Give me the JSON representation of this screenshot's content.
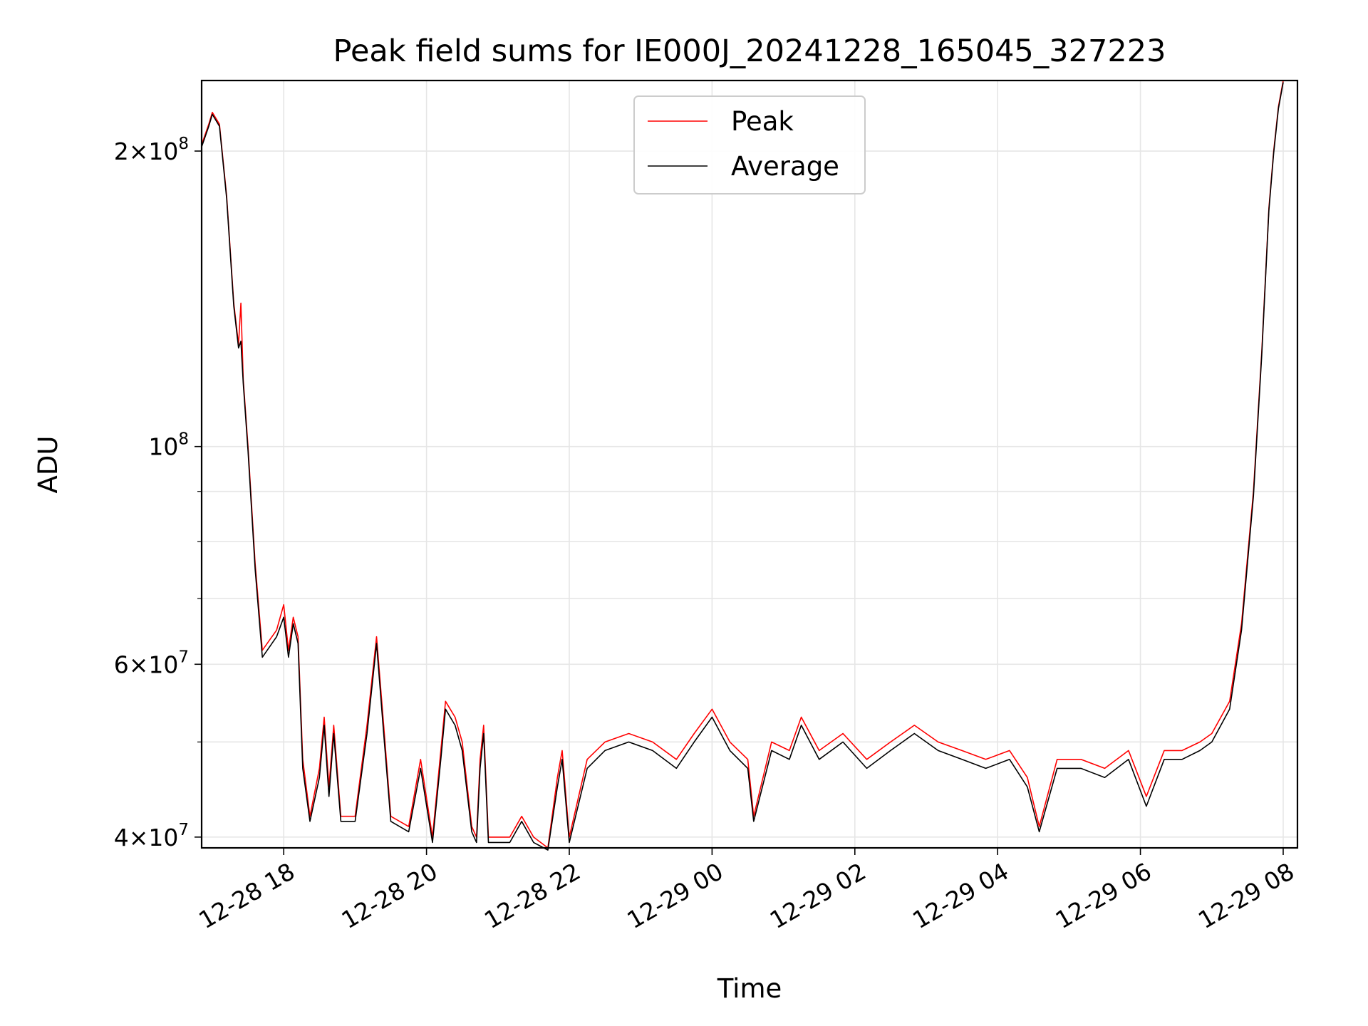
{
  "chart_data": {
    "type": "line",
    "title": "Peak field sums for IE000J_20241228_165045_327223",
    "xlabel": "Time",
    "ylabel": "ADU",
    "x_tick_labels": [
      "12-28 18",
      "12-28 20",
      "12-28 22",
      "12-29 00",
      "12-29 02",
      "12-29 04",
      "12-29 06",
      "12-29 08"
    ],
    "x_tick_times": [
      "2024-12-28T18:00",
      "2024-12-28T20:00",
      "2024-12-28T22:00",
      "2024-12-29T00:00",
      "2024-12-29T02:00",
      "2024-12-29T04:00",
      "2024-12-29T06:00",
      "2024-12-29T08:00"
    ],
    "xlim": [
      "2024-12-28T16:51",
      "2024-12-29T08:12"
    ],
    "y_scale": "log",
    "ylim": [
      39000000,
      236000000
    ],
    "y_tick_labels": [
      {
        "value": 200000000,
        "mantissa": "2",
        "exponent": "8"
      },
      {
        "value": 100000000,
        "mantissa": "",
        "exponent": "8"
      },
      {
        "value": 60000000,
        "mantissa": "6",
        "exponent": "7"
      },
      {
        "value": 40000000,
        "mantissa": "4",
        "exponent": "7"
      }
    ],
    "y_minor_ticks": [
      50000000,
      70000000,
      80000000,
      90000000
    ],
    "grid": true,
    "legend_position": "top-center",
    "series": [
      {
        "name": "Peak",
        "color": "#ff0000",
        "points": [
          [
            "2024-12-28T16:51",
            203000000
          ],
          [
            "2024-12-28T16:57",
            213000000
          ],
          [
            "2024-12-28T17:00",
            219000000
          ],
          [
            "2024-12-28T17:06",
            213000000
          ],
          [
            "2024-12-28T17:12",
            180000000
          ],
          [
            "2024-12-28T17:18",
            140000000
          ],
          [
            "2024-12-28T17:22",
            127000000
          ],
          [
            "2024-12-28T17:24",
            140000000
          ],
          [
            "2024-12-28T17:26",
            117000000
          ],
          [
            "2024-12-28T17:30",
            100000000
          ],
          [
            "2024-12-28T17:36",
            76000000
          ],
          [
            "2024-12-28T17:42",
            62000000
          ],
          [
            "2024-12-28T17:54",
            65000000
          ],
          [
            "2024-12-28T18:00",
            69000000
          ],
          [
            "2024-12-28T18:04",
            62000000
          ],
          [
            "2024-12-28T18:08",
            67000000
          ],
          [
            "2024-12-28T18:12",
            64000000
          ],
          [
            "2024-12-28T18:16",
            48000000
          ],
          [
            "2024-12-28T18:22",
            42000000
          ],
          [
            "2024-12-28T18:30",
            47000000
          ],
          [
            "2024-12-28T18:34",
            53000000
          ],
          [
            "2024-12-28T18:38",
            45000000
          ],
          [
            "2024-12-28T18:42",
            52000000
          ],
          [
            "2024-12-28T18:48",
            42000000
          ],
          [
            "2024-12-28T19:00",
            42000000
          ],
          [
            "2024-12-28T19:10",
            52000000
          ],
          [
            "2024-12-28T19:18",
            64000000
          ],
          [
            "2024-12-28T19:24",
            52000000
          ],
          [
            "2024-12-28T19:30",
            42000000
          ],
          [
            "2024-12-28T19:45",
            41000000
          ],
          [
            "2024-12-28T19:55",
            48000000
          ],
          [
            "2024-12-28T20:05",
            40000000
          ],
          [
            "2024-12-28T20:12",
            49000000
          ],
          [
            "2024-12-28T20:16",
            55000000
          ],
          [
            "2024-12-28T20:24",
            53000000
          ],
          [
            "2024-12-28T20:30",
            50000000
          ],
          [
            "2024-12-28T20:38",
            41000000
          ],
          [
            "2024-12-28T20:42",
            40000000
          ],
          [
            "2024-12-28T20:45",
            48000000
          ],
          [
            "2024-12-28T20:48",
            52000000
          ],
          [
            "2024-12-28T20:52",
            40000000
          ],
          [
            "2024-12-28T21:10",
            40000000
          ],
          [
            "2024-12-28T21:20",
            42000000
          ],
          [
            "2024-12-28T21:30",
            40000000
          ],
          [
            "2024-12-28T21:42",
            39000000
          ],
          [
            "2024-12-28T21:50",
            46000000
          ],
          [
            "2024-12-28T21:54",
            49000000
          ],
          [
            "2024-12-28T22:00",
            40000000
          ],
          [
            "2024-12-28T22:15",
            48000000
          ],
          [
            "2024-12-28T22:30",
            50000000
          ],
          [
            "2024-12-28T22:50",
            51000000
          ],
          [
            "2024-12-28T23:10",
            50000000
          ],
          [
            "2024-12-28T23:30",
            48000000
          ],
          [
            "2024-12-28T23:45",
            51000000
          ],
          [
            "2024-12-29T00:00",
            54000000
          ],
          [
            "2024-12-29T00:15",
            50000000
          ],
          [
            "2024-12-29T00:30",
            48000000
          ],
          [
            "2024-12-29T00:35",
            42000000
          ],
          [
            "2024-12-29T00:50",
            50000000
          ],
          [
            "2024-12-29T01:05",
            49000000
          ],
          [
            "2024-12-29T01:15",
            53000000
          ],
          [
            "2024-12-29T01:30",
            49000000
          ],
          [
            "2024-12-29T01:50",
            51000000
          ],
          [
            "2024-12-29T02:10",
            48000000
          ],
          [
            "2024-12-29T02:30",
            50000000
          ],
          [
            "2024-12-29T02:50",
            52000000
          ],
          [
            "2024-12-29T03:10",
            50000000
          ],
          [
            "2024-12-29T03:30",
            49000000
          ],
          [
            "2024-12-29T03:50",
            48000000
          ],
          [
            "2024-12-29T04:10",
            49000000
          ],
          [
            "2024-12-29T04:25",
            46000000
          ],
          [
            "2024-12-29T04:35",
            41000000
          ],
          [
            "2024-12-29T04:50",
            48000000
          ],
          [
            "2024-12-29T05:10",
            48000000
          ],
          [
            "2024-12-29T05:30",
            47000000
          ],
          [
            "2024-12-29T05:50",
            49000000
          ],
          [
            "2024-12-29T06:05",
            44000000
          ],
          [
            "2024-12-29T06:20",
            49000000
          ],
          [
            "2024-12-29T06:35",
            49000000
          ],
          [
            "2024-12-29T06:50",
            50000000
          ],
          [
            "2024-12-29T07:00",
            51000000
          ],
          [
            "2024-12-29T07:15",
            55000000
          ],
          [
            "2024-12-29T07:25",
            66000000
          ],
          [
            "2024-12-29T07:35",
            90000000
          ],
          [
            "2024-12-29T07:42",
            125000000
          ],
          [
            "2024-12-29T07:48",
            175000000
          ],
          [
            "2024-12-29T07:52",
            200000000
          ],
          [
            "2024-12-29T07:56",
            222000000
          ],
          [
            "2024-12-29T08:00",
            236000000
          ]
        ]
      },
      {
        "name": "Average",
        "color": "#000000",
        "points": [
          [
            "2024-12-28T16:51",
            202000000
          ],
          [
            "2024-12-28T16:57",
            212000000
          ],
          [
            "2024-12-28T17:00",
            218000000
          ],
          [
            "2024-12-28T17:06",
            212000000
          ],
          [
            "2024-12-28T17:12",
            179000000
          ],
          [
            "2024-12-28T17:18",
            139000000
          ],
          [
            "2024-12-28T17:22",
            126000000
          ],
          [
            "2024-12-28T17:24",
            128000000
          ],
          [
            "2024-12-28T17:26",
            116000000
          ],
          [
            "2024-12-28T17:30",
            99000000
          ],
          [
            "2024-12-28T17:36",
            75000000
          ],
          [
            "2024-12-28T17:42",
            61000000
          ],
          [
            "2024-12-28T17:54",
            64000000
          ],
          [
            "2024-12-28T18:00",
            67000000
          ],
          [
            "2024-12-28T18:04",
            61000000
          ],
          [
            "2024-12-28T18:08",
            66000000
          ],
          [
            "2024-12-28T18:12",
            63000000
          ],
          [
            "2024-12-28T18:16",
            47000000
          ],
          [
            "2024-12-28T18:22",
            41500000
          ],
          [
            "2024-12-28T18:30",
            46000000
          ],
          [
            "2024-12-28T18:34",
            52000000
          ],
          [
            "2024-12-28T18:38",
            44000000
          ],
          [
            "2024-12-28T18:42",
            51000000
          ],
          [
            "2024-12-28T18:48",
            41500000
          ],
          [
            "2024-12-28T19:00",
            41500000
          ],
          [
            "2024-12-28T19:10",
            51000000
          ],
          [
            "2024-12-28T19:18",
            63000000
          ],
          [
            "2024-12-28T19:24",
            51000000
          ],
          [
            "2024-12-28T19:30",
            41500000
          ],
          [
            "2024-12-28T19:45",
            40500000
          ],
          [
            "2024-12-28T19:55",
            47000000
          ],
          [
            "2024-12-28T20:05",
            39500000
          ],
          [
            "2024-12-28T20:12",
            48000000
          ],
          [
            "2024-12-28T20:16",
            54000000
          ],
          [
            "2024-12-28T20:24",
            52000000
          ],
          [
            "2024-12-28T20:30",
            49000000
          ],
          [
            "2024-12-28T20:38",
            40500000
          ],
          [
            "2024-12-28T20:42",
            39500000
          ],
          [
            "2024-12-28T20:45",
            47000000
          ],
          [
            "2024-12-28T20:48",
            51000000
          ],
          [
            "2024-12-28T20:52",
            39500000
          ],
          [
            "2024-12-28T21:10",
            39500000
          ],
          [
            "2024-12-28T21:20",
            41500000
          ],
          [
            "2024-12-28T21:30",
            39500000
          ],
          [
            "2024-12-28T21:42",
            38800000
          ],
          [
            "2024-12-28T21:50",
            45000000
          ],
          [
            "2024-12-28T21:54",
            48000000
          ],
          [
            "2024-12-28T22:00",
            39500000
          ],
          [
            "2024-12-28T22:15",
            47000000
          ],
          [
            "2024-12-28T22:30",
            49000000
          ],
          [
            "2024-12-28T22:50",
            50000000
          ],
          [
            "2024-12-28T23:10",
            49000000
          ],
          [
            "2024-12-28T23:30",
            47000000
          ],
          [
            "2024-12-28T23:45",
            50000000
          ],
          [
            "2024-12-29T00:00",
            53000000
          ],
          [
            "2024-12-29T00:15",
            49000000
          ],
          [
            "2024-12-29T00:30",
            47000000
          ],
          [
            "2024-12-29T00:35",
            41500000
          ],
          [
            "2024-12-29T00:50",
            49000000
          ],
          [
            "2024-12-29T01:05",
            48000000
          ],
          [
            "2024-12-29T01:15",
            52000000
          ],
          [
            "2024-12-29T01:30",
            48000000
          ],
          [
            "2024-12-29T01:50",
            50000000
          ],
          [
            "2024-12-29T02:10",
            47000000
          ],
          [
            "2024-12-29T02:30",
            49000000
          ],
          [
            "2024-12-29T02:50",
            51000000
          ],
          [
            "2024-12-29T03:10",
            49000000
          ],
          [
            "2024-12-29T03:30",
            48000000
          ],
          [
            "2024-12-29T03:50",
            47000000
          ],
          [
            "2024-12-29T04:10",
            48000000
          ],
          [
            "2024-12-29T04:25",
            45000000
          ],
          [
            "2024-12-29T04:35",
            40500000
          ],
          [
            "2024-12-29T04:50",
            47000000
          ],
          [
            "2024-12-29T05:10",
            47000000
          ],
          [
            "2024-12-29T05:30",
            46000000
          ],
          [
            "2024-12-29T05:50",
            48000000
          ],
          [
            "2024-12-29T06:05",
            43000000
          ],
          [
            "2024-12-29T06:20",
            48000000
          ],
          [
            "2024-12-29T06:35",
            48000000
          ],
          [
            "2024-12-29T06:50",
            49000000
          ],
          [
            "2024-12-29T07:00",
            50000000
          ],
          [
            "2024-12-29T07:15",
            54000000
          ],
          [
            "2024-12-29T07:25",
            65000000
          ],
          [
            "2024-12-29T07:35",
            89000000
          ],
          [
            "2024-12-29T07:42",
            124000000
          ],
          [
            "2024-12-29T07:48",
            174000000
          ],
          [
            "2024-12-29T07:52",
            199000000
          ],
          [
            "2024-12-29T07:56",
            221000000
          ],
          [
            "2024-12-29T08:00",
            235000000
          ]
        ]
      }
    ]
  }
}
